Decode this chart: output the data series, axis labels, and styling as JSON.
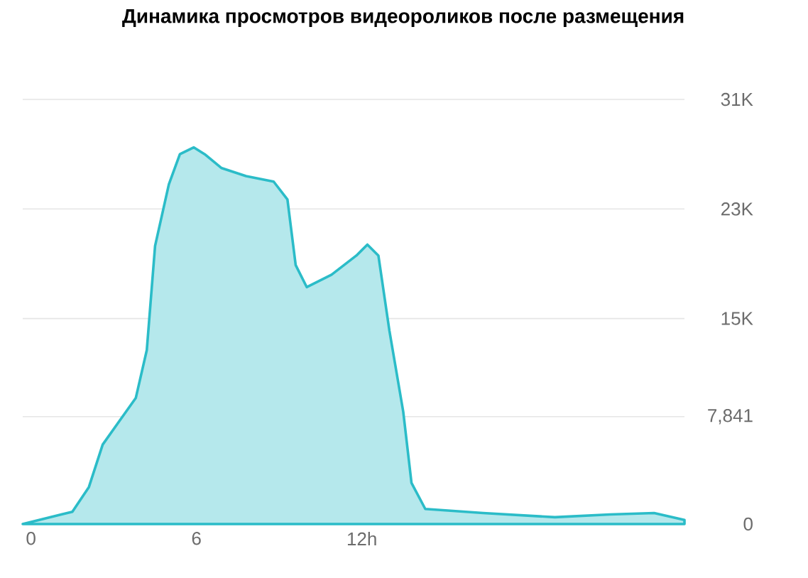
{
  "chart_data": {
    "type": "area",
    "title": "Динамика просмотров видеороликов после размещения",
    "x": [
      -0.3,
      1.1,
      1.5,
      2.1,
      2.6,
      3.2,
      3.8,
      4.2,
      4.5,
      5.0,
      5.4,
      5.9,
      6.3,
      6.9,
      7.8,
      8.8,
      9.3,
      9.6,
      10.0,
      10.9,
      11.8,
      12.2,
      12.6,
      13.0,
      13.5,
      13.8,
      14.3,
      16.4,
      19.0,
      21.0,
      22.6,
      23.7
    ],
    "series": [
      {
        "color": "#2bbcc8",
        "values": [
          0,
          700,
          900,
          2700,
          5800,
          7500,
          9200,
          12700,
          20300,
          24800,
          27000,
          27500,
          27000,
          26000,
          25400,
          25000,
          23700,
          18900,
          17300,
          18200,
          19600,
          20400,
          19600,
          14100,
          8200,
          3000,
          1100,
          800,
          500,
          700,
          800,
          300
        ]
      }
    ],
    "xlim": [
      -0.3,
      23.7
    ],
    "ylim": [
      0,
      31000
    ],
    "xticks": [
      0,
      6,
      {
        "value": 12,
        "label": "12h"
      }
    ],
    "yticks": [
      0,
      {
        "value": 7841,
        "label": "7,841"
      },
      {
        "value": 15000,
        "label": "15K"
      },
      {
        "value": 23000,
        "label": "23K"
      },
      {
        "value": 31000,
        "label": "31K"
      }
    ],
    "grid": "y"
  }
}
